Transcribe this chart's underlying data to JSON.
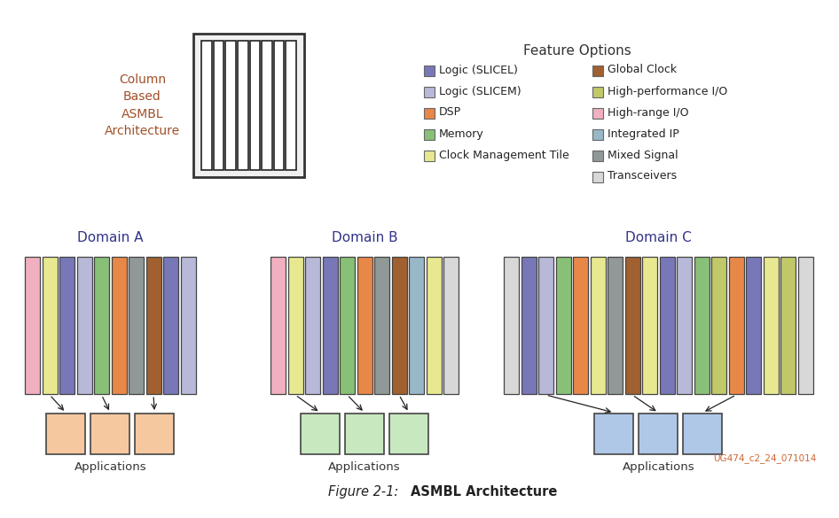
{
  "bg_color": "#ffffff",
  "fig_caption_italic": "Figure 2-1:   ",
  "fig_caption_bold": "ASMBL Architecture",
  "watermark": "UG474_c2_24_071014",
  "watermark_color": "#CC6633",
  "legend_title": "Feature Options",
  "legend_title_color": "#333333",
  "legend_items_left": [
    {
      "label": "Logic (SLICEL)",
      "color": "#7878B8"
    },
    {
      "label": "Logic (SLICEM)",
      "color": "#B8B8D8"
    },
    {
      "label": "DSP",
      "color": "#E88848"
    },
    {
      "label": "Memory",
      "color": "#88C078"
    },
    {
      "label": "Clock Management Tile",
      "color": "#E8E890"
    }
  ],
  "legend_items_right": [
    {
      "label": "Global Clock",
      "color": "#A06030"
    },
    {
      "label": "High-performance I/O",
      "color": "#C0C868"
    },
    {
      "label": "High-range I/O",
      "color": "#F0B0C0"
    },
    {
      "label": "Integrated IP",
      "color": "#98B8C8"
    },
    {
      "label": "Mixed Signal",
      "color": "#909898"
    },
    {
      "label": "Transceivers",
      "color": "#D8D8D8"
    }
  ],
  "asmbl_label": "Column\nBased\nASMBL\nArchitecture",
  "asmbl_label_color": "#A05028",
  "domain_labels": [
    "Domain A",
    "Domain B",
    "Domain C"
  ],
  "domain_label_color": "#333388",
  "domain_A_colors": [
    "#F0B0C0",
    "#E8E890",
    "#7878B8",
    "#B8B8D8",
    "#88C078",
    "#E88848",
    "#909898",
    "#A06030",
    "#7878B8",
    "#B8B8D8"
  ],
  "domain_B_colors": [
    "#F0B0C0",
    "#E8E890",
    "#B8B8D8",
    "#7878B8",
    "#88C078",
    "#E88848",
    "#909898",
    "#A06030",
    "#98B8C8",
    "#E8E890",
    "#D8D8D8"
  ],
  "domain_C_colors": [
    "#D8D8D8",
    "#7878B8",
    "#B8B8D8",
    "#88C078",
    "#E88848",
    "#E8E890",
    "#909898",
    "#A06030",
    "#E8E890",
    "#7878B8",
    "#B8B8D8",
    "#88C078",
    "#C0C868",
    "#E88848",
    "#7878B8",
    "#E8E890",
    "#C0C868",
    "#D8D8D8"
  ],
  "domain_A_app_color": "#F5C8A0",
  "domain_B_app_color": "#C8E8C0",
  "domain_C_app_color": "#B0C8E8",
  "applications_label": "Applications",
  "applications_color": "#333333"
}
